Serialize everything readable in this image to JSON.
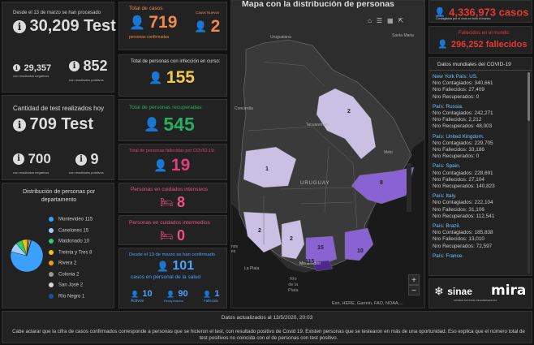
{
  "tests": {
    "total_caption": "Desde el 13 de marzo se han procesado",
    "total_value": "30,209 Test",
    "negative_value": "29,357",
    "negative_label": "con resultados negativos",
    "positive_value": "852",
    "positive_label": "con resultados positivos",
    "today_caption": "Cantidad de test realizados hoy",
    "today_value": "709 Test",
    "today_negative_value": "700",
    "today_negative_label": "con resultados negativos",
    "today_positive_value": "9",
    "today_positive_label": "con resultados positivos"
  },
  "dept_chart": {
    "title": "Distribución de personas por departamento",
    "items": [
      {
        "label": "Montevideo",
        "value": "115",
        "color": "#3ba0ff"
      },
      {
        "label": "Canelones",
        "value": "15",
        "color": "#9fd0ff"
      },
      {
        "label": "Maldonado",
        "value": "10",
        "color": "#2ecc71"
      },
      {
        "label": "Treinta y Tres",
        "value": "8",
        "color": "#f1c40f"
      },
      {
        "label": "Rivera",
        "value": "2",
        "color": "#f39c12"
      },
      {
        "label": "Colonia",
        "value": "2",
        "color": "#999999"
      },
      {
        "label": "San José",
        "value": "2",
        "color": "#d7d7d7"
      },
      {
        "label": "Río Negro",
        "value": "1",
        "color": "#1a4fa0"
      }
    ]
  },
  "cases": {
    "total_label": "Total de casos",
    "total_value": "719",
    "total_sub": "personas confirmadas",
    "new_label": "Casos Nuevos",
    "new_value": "2",
    "active_label": "Total de personas con infección en curso:",
    "active_value": "155",
    "recovered_label": "Total de personas recuperadas:",
    "recovered_value": "545",
    "deaths_label": "Total de personas fallecidas por COVID-19:",
    "deaths_value": "19",
    "icu_label": "Personas en cuidados intensivos",
    "icu_value": "8",
    "intermediate_label": "Personas en cuidados intermedios",
    "intermediate_value": "0",
    "health_caption": "Desde el 13 de marzo se han confirmado",
    "health_value": "101",
    "health_sub": "casos en personal de la salud",
    "health_active_value": "10",
    "health_active_label": "Activos",
    "health_recovered_value": "90",
    "health_recovered_label": "Recuperados",
    "health_deaths_value": "1",
    "health_deaths_label": "Fallecido"
  },
  "map": {
    "title": "Mapa con la distribución de personas",
    "attribution": "Esri, HERE, Garmin, FAO, NOAA,...",
    "labels": {
      "uruguaiana": "Uruguaiana",
      "santa_maria": "Santa Maria",
      "concordia": "Concordia",
      "tacuarembo": "Tacuarembó",
      "melo": "Melo",
      "uruguay": "URUGUAY",
      "buenos_aires": "nos\nes",
      "la_plata": "La Plata",
      "rio_de_la_plata": "Río\nde la\nPlata",
      "montevideo": "Montevideo"
    },
    "markers": [
      "2",
      "1",
      "8",
      "2",
      "2",
      "15",
      "115",
      "10"
    ],
    "zoom_in": "+",
    "zoom_out": "−"
  },
  "world": {
    "cases_value": "4,336,973 casos",
    "cases_sub": "Contagiados por el virus en todo el mundo",
    "deaths_label": "Fallecidos en el mundo",
    "deaths_value": "296,252 fallecidos",
    "list_title": "Datos mundiales del COVID-19",
    "labels": {
      "country": "País:",
      "contagiados": "Nro Contagiados:",
      "fallecidos": "Nro Fallecidos:",
      "recuperados": "Nro Recuperados:"
    },
    "entries": [
      {
        "place": "New York",
        "country": "US.",
        "contagiados": "340,661",
        "fallecidos": "27,409",
        "recuperados": "0"
      },
      {
        "place": "",
        "country": "Russia.",
        "contagiados": "242,271",
        "fallecidos": "2,212",
        "recuperados": "48,003"
      },
      {
        "place": "",
        "country": "United Kingdom.",
        "contagiados": "229,705",
        "fallecidos": "33,186",
        "recuperados": "0"
      },
      {
        "place": "",
        "country": "Spain.",
        "contagiados": "228,691",
        "fallecidos": "27,104",
        "recuperados": "140,823"
      },
      {
        "place": "",
        "country": "Italy.",
        "contagiados": "222,104",
        "fallecidos": "31,106",
        "recuperados": "112,541"
      },
      {
        "place": "",
        "country": "Brazil.",
        "contagiados": "185,838",
        "fallecidos": "13,010",
        "recuperados": "72,597"
      },
      {
        "place": "",
        "country": "France.",
        "contagiados": "",
        "fallecidos": "",
        "recuperados": ""
      }
    ],
    "logo1": "sinae",
    "logo1_sub": "SISTEMA NACIONAL DE EMERGENCIAS",
    "logo2": "mira"
  },
  "footer": {
    "updated": "Datos actualizados al 13/5/2020, 20:03",
    "note": "Cabe aclarar que la cifra de casos confirmados corresponde a personas que se hicieron el test, con resultado positivo de Covid 19. Existen personas que se testearon en más de una oportunidad. Eso explica que el número total de test positivos no coincida con el de personas con test positivo."
  }
}
